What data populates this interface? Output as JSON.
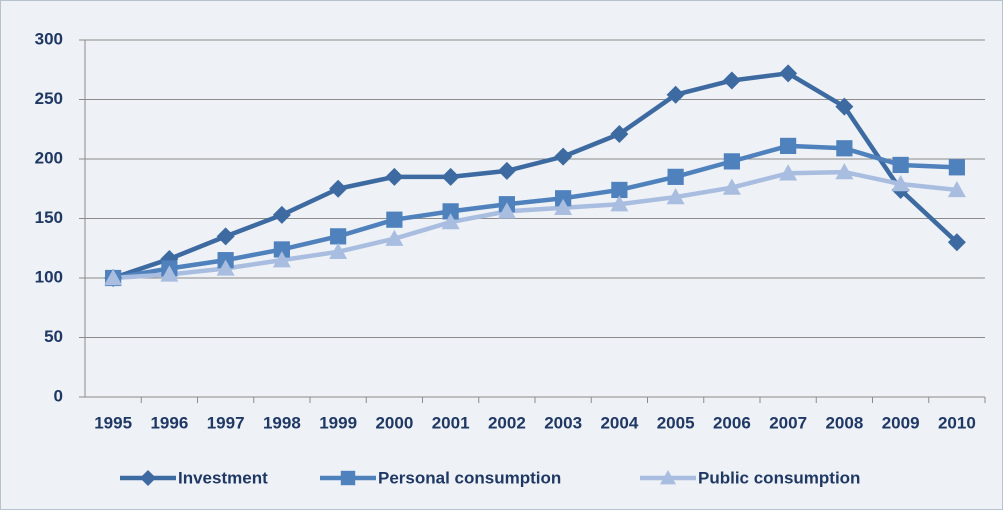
{
  "chart_data": {
    "type": "line",
    "categories": [
      "1995",
      "1996",
      "1997",
      "1998",
      "1999",
      "2000",
      "2001",
      "2002",
      "2003",
      "2004",
      "2005",
      "2006",
      "2007",
      "2008",
      "2009",
      "2010"
    ],
    "series": [
      {
        "name": "Investment",
        "color": "#3d6aa0",
        "marker": "diamond",
        "values": [
          100,
          116,
          135,
          153,
          175,
          185,
          185,
          190,
          202,
          221,
          254,
          266,
          272,
          244,
          174,
          130
        ]
      },
      {
        "name": "Personal consumption",
        "color": "#4f81bd",
        "marker": "square",
        "values": [
          100,
          108,
          115,
          124,
          135,
          149,
          156,
          162,
          167,
          174,
          185,
          198,
          211,
          209,
          195,
          193
        ]
      },
      {
        "name": "Public consumption",
        "color": "#a8bde0",
        "marker": "triangle",
        "values": [
          100,
          103,
          108,
          115,
          122,
          133,
          147,
          156,
          159,
          162,
          168,
          176,
          188,
          189,
          179,
          174
        ]
      }
    ],
    "ylim": [
      0,
      300
    ],
    "yticks": [
      0,
      50,
      100,
      150,
      200,
      250,
      300
    ],
    "grid": true,
    "legend": "bottom"
  }
}
